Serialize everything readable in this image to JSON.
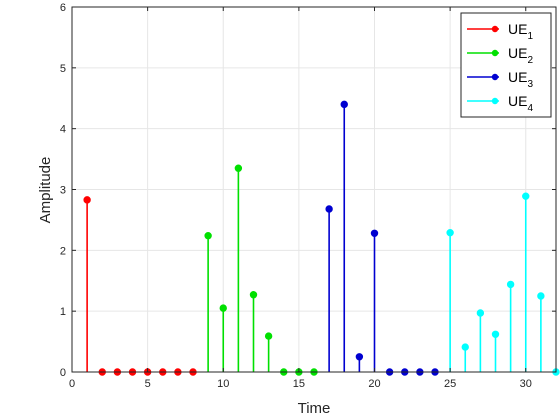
{
  "chart_data": {
    "type": "stem",
    "xlabel": "Time",
    "ylabel": "Amplitude",
    "xlim": [
      0,
      32
    ],
    "ylim": [
      0,
      6
    ],
    "xticks": [
      0,
      5,
      10,
      15,
      20,
      25,
      30
    ],
    "yticks": [
      0,
      1,
      2,
      3,
      4,
      5,
      6
    ],
    "grid": true,
    "legend_position": "top-right",
    "series": [
      {
        "name": "UE",
        "subscript": "1",
        "color": "#ff0000",
        "x": [
          1,
          2,
          3,
          4,
          5,
          6,
          7,
          8
        ],
        "values": [
          2.83,
          0,
          0,
          0,
          0,
          0,
          0,
          0
        ]
      },
      {
        "name": "UE",
        "subscript": "2",
        "color": "#00e000",
        "x": [
          9,
          10,
          11,
          12,
          13,
          14,
          15,
          16
        ],
        "values": [
          2.24,
          1.05,
          3.35,
          1.27,
          0.59,
          0,
          0,
          0
        ]
      },
      {
        "name": "UE",
        "subscript": "3",
        "color": "#0000d0",
        "x": [
          17,
          18,
          19,
          20,
          21,
          22,
          23,
          24
        ],
        "values": [
          2.68,
          4.4,
          0.25,
          2.28,
          0,
          0,
          0,
          0
        ]
      },
      {
        "name": "UE",
        "subscript": "4",
        "color": "#00ffff",
        "x": [
          25,
          26,
          27,
          28,
          29,
          30,
          31,
          32
        ],
        "values": [
          2.29,
          0.41,
          0.97,
          0.62,
          1.44,
          2.89,
          1.25,
          0
        ]
      }
    ]
  }
}
